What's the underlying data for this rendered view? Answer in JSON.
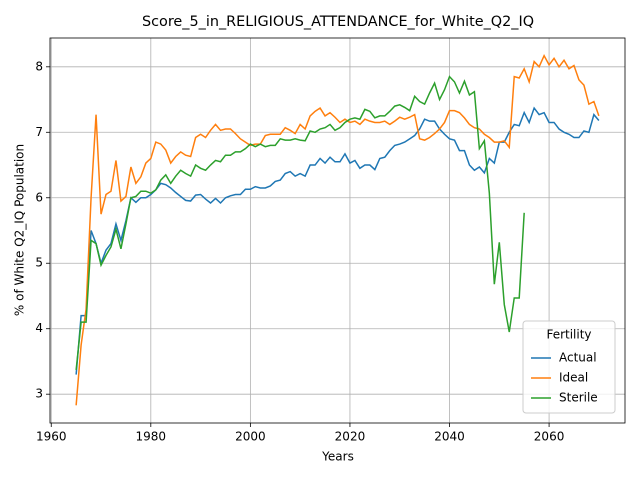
{
  "chart_data": {
    "type": "line",
    "title": "Score_5_in_RELIGIOUS_ATTENDANCE_for_White_Q2_IQ",
    "xlabel": "Years",
    "ylabel": "% of White Q2_IQ Population",
    "legend_title": "Fertility",
    "legend": "lower right",
    "grid": true,
    "xlim": [
      1959.75,
      2075.25
    ],
    "xticks": [
      1960,
      1980,
      2000,
      2020,
      2040,
      2060
    ],
    "ylim": [
      2.56,
      8.44
    ],
    "yticks": [
      3,
      4,
      5,
      6,
      7,
      8
    ],
    "x": [
      1965,
      1966,
      1967,
      1968,
      1969,
      1970,
      1971,
      1972,
      1973,
      1974,
      1975,
      1976,
      1977,
      1978,
      1979,
      1980,
      1981,
      1982,
      1983,
      1984,
      1985,
      1986,
      1987,
      1988,
      1989,
      1990,
      1991,
      1992,
      1993,
      1994,
      1995,
      1996,
      1997,
      1998,
      1999,
      2000,
      2001,
      2002,
      2003,
      2004,
      2005,
      2006,
      2007,
      2008,
      2009,
      2010,
      2011,
      2012,
      2013,
      2014,
      2015,
      2016,
      2017,
      2018,
      2019,
      2020,
      2021,
      2022,
      2023,
      2024,
      2025,
      2026,
      2027,
      2028,
      2029,
      2030,
      2031,
      2032,
      2033,
      2034,
      2035,
      2036,
      2037,
      2038,
      2039,
      2040,
      2041,
      2042,
      2043,
      2044,
      2045,
      2046,
      2047,
      2048,
      2049,
      2050,
      2051,
      2052,
      2053,
      2054,
      2055,
      2056,
      2057,
      2058,
      2059,
      2060,
      2061,
      2062,
      2063,
      2064,
      2065,
      2066,
      2067,
      2068,
      2069,
      2070
    ],
    "series": [
      {
        "name": "Actual",
        "color": "#1f77b4",
        "values": [
          3.3,
          4.2,
          4.2,
          5.5,
          5.3,
          5.0,
          5.2,
          5.3,
          5.6,
          5.35,
          5.65,
          6.0,
          5.93,
          6.0,
          6.0,
          6.05,
          6.12,
          6.22,
          6.2,
          6.15,
          6.08,
          6.02,
          5.96,
          5.95,
          6.04,
          6.05,
          5.98,
          5.92,
          5.99,
          5.92,
          6.0,
          6.03,
          6.05,
          6.05,
          6.13,
          6.13,
          6.17,
          6.15,
          6.15,
          6.18,
          6.25,
          6.27,
          6.37,
          6.4,
          6.33,
          6.37,
          6.33,
          6.5,
          6.5,
          6.6,
          6.53,
          6.62,
          6.55,
          6.55,
          6.67,
          6.53,
          6.57,
          6.45,
          6.5,
          6.5,
          6.43,
          6.6,
          6.62,
          6.72,
          6.8,
          6.82,
          6.85,
          6.9,
          6.95,
          7.05,
          7.2,
          7.17,
          7.17,
          7.05,
          6.97,
          6.9,
          6.88,
          6.72,
          6.72,
          6.5,
          6.42,
          6.47,
          6.38,
          6.6,
          6.53,
          6.85,
          6.85,
          7.0,
          7.12,
          7.1,
          7.3,
          7.15,
          7.37,
          7.27,
          7.3,
          7.15,
          7.15,
          7.05,
          7.0,
          6.97,
          6.92,
          6.92,
          7.02,
          7.0,
          7.27,
          7.18
        ]
      },
      {
        "name": "Ideal",
        "color": "#ff7f0e",
        "values": [
          2.83,
          3.75,
          4.3,
          6.0,
          7.27,
          5.75,
          6.05,
          6.1,
          6.57,
          5.95,
          6.02,
          6.47,
          6.22,
          6.32,
          6.53,
          6.6,
          6.85,
          6.82,
          6.73,
          6.53,
          6.63,
          6.7,
          6.65,
          6.63,
          6.92,
          6.97,
          6.92,
          7.03,
          7.12,
          7.03,
          7.05,
          7.05,
          6.98,
          6.9,
          6.85,
          6.8,
          6.82,
          6.82,
          6.95,
          6.97,
          6.97,
          6.97,
          7.07,
          7.03,
          6.98,
          7.12,
          7.05,
          7.25,
          7.32,
          7.37,
          7.25,
          7.3,
          7.23,
          7.15,
          7.2,
          7.15,
          7.17,
          7.12,
          7.2,
          7.17,
          7.15,
          7.15,
          7.17,
          7.12,
          7.17,
          7.23,
          7.2,
          7.23,
          7.27,
          6.9,
          6.88,
          6.92,
          6.98,
          7.05,
          7.15,
          7.33,
          7.33,
          7.3,
          7.22,
          7.12,
          7.07,
          7.05,
          6.97,
          6.92,
          6.85,
          6.85,
          6.87,
          6.77,
          7.85,
          7.83,
          7.97,
          7.77,
          8.08,
          8.0,
          8.17,
          8.03,
          8.13,
          8.0,
          8.1,
          7.97,
          8.02,
          7.8,
          7.72,
          7.43,
          7.47,
          7.25
        ]
      },
      {
        "name": "Sterile",
        "color": "#2ca02c",
        "values": [
          3.37,
          4.1,
          4.1,
          5.35,
          5.3,
          4.97,
          5.12,
          5.25,
          5.52,
          5.22,
          5.6,
          6.0,
          6.02,
          6.1,
          6.1,
          6.07,
          6.12,
          6.27,
          6.35,
          6.22,
          6.33,
          6.42,
          6.37,
          6.33,
          6.5,
          6.45,
          6.42,
          6.5,
          6.57,
          6.55,
          6.65,
          6.65,
          6.7,
          6.7,
          6.75,
          6.82,
          6.78,
          6.82,
          6.78,
          6.8,
          6.8,
          6.9,
          6.88,
          6.88,
          6.9,
          6.88,
          6.87,
          7.02,
          7.0,
          7.05,
          7.07,
          7.12,
          7.03,
          7.07,
          7.15,
          7.2,
          7.22,
          7.2,
          7.35,
          7.32,
          7.22,
          7.25,
          7.25,
          7.32,
          7.4,
          7.42,
          7.38,
          7.33,
          7.55,
          7.47,
          7.43,
          7.6,
          7.75,
          7.5,
          7.65,
          7.85,
          7.77,
          7.6,
          7.78,
          7.57,
          7.62,
          6.75,
          6.87,
          6.07,
          4.68,
          5.32,
          4.37,
          3.95,
          4.47,
          4.47,
          5.77,
          null,
          null,
          null,
          null,
          null,
          null,
          null,
          null,
          null,
          null,
          null,
          null,
          null,
          null,
          null
        ]
      }
    ]
  }
}
